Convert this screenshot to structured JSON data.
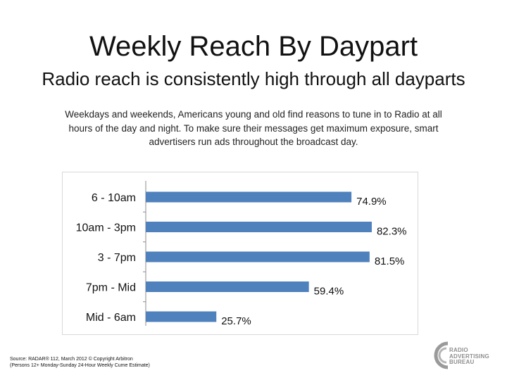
{
  "header": {
    "title": "Weekly Reach By Daypart",
    "subtitle": "Radio reach is consistently high through all dayparts"
  },
  "intro_text": "Weekdays and weekends, Americans young and old find reasons to tune in to Radio at all hours of the day and night. To make sure their messages get maximum exposure, smart advertisers run ads  throughout the broadcast day.",
  "chart_data": {
    "type": "bar",
    "orientation": "horizontal",
    "categories": [
      "6 - 10am",
      "10am - 3pm",
      "3 - 7pm",
      "7pm - Mid",
      "Mid - 6am"
    ],
    "values": [
      74.9,
      82.3,
      81.5,
      59.4,
      25.7
    ],
    "value_labels": [
      "74.9%",
      "82.3%",
      "81.5%",
      "59.4%",
      "25.7%"
    ],
    "xlim": [
      0,
      100
    ],
    "grid": false,
    "bar_color": "#4f81bd"
  },
  "footer": {
    "source_line1": "Source: RADAR® 112, March 2012 © Copyright Arbitron",
    "source_line2": "(Persons 12+ Monday-Sunday 24-Hour Weekly Cume Estimate)"
  },
  "logo": {
    "line1": "RADIO",
    "line2": "ADVERTISING",
    "line3": "BUREAU",
    "color": "#8f8f8f"
  }
}
